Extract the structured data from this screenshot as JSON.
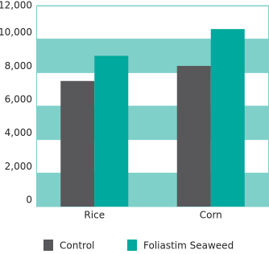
{
  "chart_data": {
    "type": "bar",
    "categories": [
      "Rice",
      "Corn"
    ],
    "series": [
      {
        "name": "Control",
        "color": "#58585a",
        "values": [
          7500,
          8400
        ]
      },
      {
        "name": "Foliastim Seaweed",
        "color": "#00a99d",
        "values": [
          9000,
          10600
        ]
      }
    ],
    "ylim": [
      0,
      12000
    ],
    "yticks": [
      0,
      {
        "value": 2000,
        "label": "2,000"
      },
      {
        "value": 4000,
        "label": "4,000"
      },
      {
        "value": 6000,
        "label": "6,000"
      },
      {
        "value": 8000,
        "label": "8,000"
      },
      {
        "value": 10000,
        "label": "10,000"
      },
      {
        "value": 12000,
        "label": "12,000"
      }
    ],
    "band_color": "#7fd0c9",
    "legend": "bottom"
  }
}
